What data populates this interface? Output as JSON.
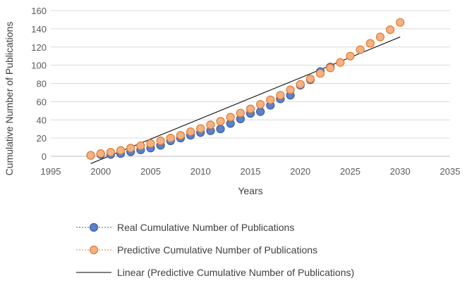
{
  "chart_data": {
    "type": "scatter",
    "title": "",
    "xlabel": "Years",
    "ylabel": "Cumulative Number of Publications",
    "xlim": [
      1995,
      2035
    ],
    "ylim": [
      0,
      160
    ],
    "xticks": [
      "1995",
      "2000",
      "2005",
      "2010",
      "2015",
      "2020",
      "2025",
      "2030",
      "2035"
    ],
    "yticks": [
      "0",
      "20",
      "40",
      "60",
      "80",
      "100",
      "120",
      "140",
      "160"
    ],
    "grid": "horizontal",
    "legend_position": "bottom",
    "series": [
      {
        "name": "Real  Cumulative Number of Publications",
        "marker": "circle",
        "color": "#4472C4",
        "x": [
          1999,
          2000,
          2001,
          2002,
          2003,
          2004,
          2005,
          2006,
          2007,
          2008,
          2009,
          2010,
          2011,
          2012,
          2013,
          2014,
          2015,
          2016,
          2017,
          2018,
          2019,
          2020,
          2021,
          2022,
          2023
        ],
        "y": [
          1,
          2,
          2,
          3,
          5,
          7,
          9,
          12,
          17,
          20,
          23,
          26,
          28,
          30,
          36,
          41,
          47,
          49,
          56,
          63,
          67,
          78,
          84,
          93,
          98
        ]
      },
      {
        "name": "Predictive Cumulative Number of Publications",
        "marker": "circle",
        "color": "#ED7D31",
        "x": [
          1999,
          2000,
          2001,
          2002,
          2003,
          2004,
          2005,
          2006,
          2007,
          2008,
          2009,
          2010,
          2011,
          2012,
          2013,
          2014,
          2015,
          2016,
          2017,
          2018,
          2019,
          2020,
          2021,
          2022,
          2023,
          2024,
          2025,
          2026,
          2027,
          2028,
          2029,
          2030
        ],
        "y": [
          1,
          3,
          4.5,
          6.5,
          9,
          11.5,
          14,
          17,
          20,
          23,
          27,
          30.5,
          34.5,
          38.5,
          43,
          47.5,
          52,
          57,
          62,
          67,
          73,
          79,
          85,
          91,
          97,
          103,
          110,
          117,
          124,
          131,
          139,
          147
        ]
      },
      {
        "name": "Linear (Predictive Cumulative Number of Publications)",
        "type": "trendline",
        "color": "#000000",
        "x": [
          1999,
          2030
        ],
        "y": [
          -8,
          131
        ]
      }
    ]
  }
}
